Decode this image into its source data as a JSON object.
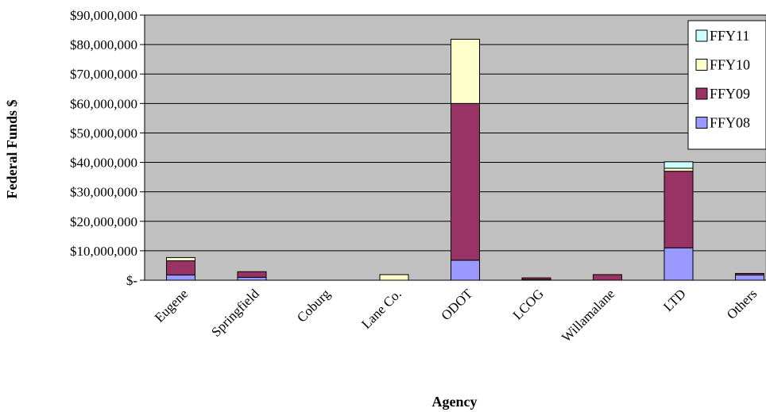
{
  "chart_data": {
    "type": "bar",
    "stacked": true,
    "title": "",
    "xlabel": "Agency",
    "ylabel": "Federal Funds $",
    "ylim": [
      0,
      90000000
    ],
    "ytick_step": 10000000,
    "yticks": [
      "$-",
      "$10,000,000",
      "$20,000,000",
      "$30,000,000",
      "$40,000,000",
      "$50,000,000",
      "$60,000,000",
      "$70,000,000",
      "$80,000,000",
      "$90,000,000"
    ],
    "grid": true,
    "legend_position": "top-right",
    "plot_background": "#c0c0c0",
    "categories": [
      "Eugene",
      "Springfield",
      "Coburg",
      "Lane Co.",
      "ODOT",
      "LCOG",
      "Willamalane",
      "LTD",
      "Others"
    ],
    "series": [
      {
        "name": "FFY08",
        "color": "#9999ff",
        "values": [
          1800000,
          1000000,
          0,
          0,
          6800000,
          200000,
          0,
          11000000,
          1800000
        ]
      },
      {
        "name": "FFY09",
        "color": "#993366",
        "values": [
          4800000,
          1900000,
          0,
          0,
          53200000,
          600000,
          1900000,
          26000000,
          500000
        ]
      },
      {
        "name": "FFY10",
        "color": "#ffffcc",
        "values": [
          1100000,
          0,
          0,
          1900000,
          21800000,
          0,
          0,
          1000000,
          0
        ]
      },
      {
        "name": "FFY11",
        "color": "#ccffff",
        "values": [
          0,
          0,
          0,
          0,
          0,
          0,
          0,
          2200000,
          0
        ]
      }
    ]
  }
}
